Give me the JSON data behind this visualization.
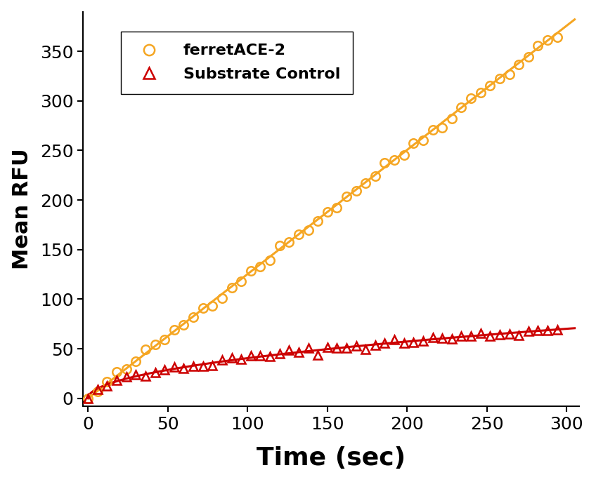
{
  "title": "",
  "xlabel": "Time (sec)",
  "ylabel": "Mean RFU",
  "xlim": [
    -3,
    308
  ],
  "ylim": [
    -8,
    390
  ],
  "xticks": [
    0,
    50,
    100,
    150,
    200,
    250,
    300
  ],
  "yticks": [
    0,
    50,
    100,
    150,
    200,
    250,
    300,
    350
  ],
  "orange_color": "#F5A623",
  "red_color": "#CC0000",
  "legend_text_color": "#000000",
  "background_color": "#ffffff",
  "legend_labels": [
    "ferretACE-2",
    "Substrate Control"
  ],
  "xlabel_fontsize": 26,
  "ylabel_fontsize": 22,
  "tick_fontsize": 18,
  "legend_fontsize": 16,
  "orange_slope": 1.253,
  "orange_intercept": 0.0,
  "red_sqrt_a": 4.05
}
